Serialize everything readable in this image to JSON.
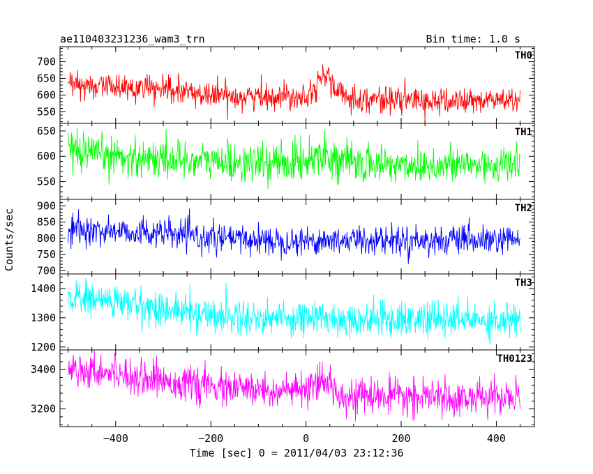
{
  "header": {
    "title": "ae110403231236_wam3_trn",
    "bin_time": "Bin time: 1.0 s"
  },
  "chart_data": {
    "type": "line",
    "title": "ae110403231236_wam3_trn",
    "subtitle": "Bin time: 1.0 s",
    "xlabel": "Time [sec] 0 = 2011/04/03 23:12:36",
    "ylabel": "Counts/sec",
    "xlim": [
      -517,
      480
    ],
    "x_ticks": [
      -400,
      -200,
      0,
      200,
      400
    ],
    "x_range_data": [
      -500,
      450
    ],
    "bin_time_s": 1.0,
    "panels": [
      {
        "name": "TH0",
        "color": "#ff0000",
        "ylim": [
          515,
          745
        ],
        "yticks": [
          550,
          600,
          650,
          700
        ],
        "profile": [
          [
            -500,
            630
          ],
          [
            -400,
            625
          ],
          [
            -300,
            615
          ],
          [
            -200,
            600
          ],
          [
            -100,
            595
          ],
          [
            0,
            600
          ],
          [
            30,
            640
          ],
          [
            45,
            670
          ],
          [
            60,
            610
          ],
          [
            100,
            590
          ],
          [
            200,
            585
          ],
          [
            300,
            580
          ],
          [
            400,
            585
          ],
          [
            450,
            585
          ]
        ],
        "noise": 20
      },
      {
        "name": "TH1",
        "color": "#00ff00",
        "ylim": [
          515,
          665
        ],
        "yticks": [
          550,
          600,
          650
        ],
        "profile": [
          [
            -500,
            605
          ],
          [
            -400,
            600
          ],
          [
            -300,
            595
          ],
          [
            -200,
            590
          ],
          [
            -100,
            585
          ],
          [
            0,
            590
          ],
          [
            30,
            610
          ],
          [
            60,
            595
          ],
          [
            100,
            585
          ],
          [
            200,
            583
          ],
          [
            300,
            582
          ],
          [
            400,
            583
          ],
          [
            450,
            583
          ]
        ],
        "noise": 19
      },
      {
        "name": "TH2",
        "color": "#0000ff",
        "ylim": [
          690,
          920
        ],
        "yticks": [
          700,
          750,
          800,
          850,
          900
        ],
        "profile": [
          [
            -500,
            825
          ],
          [
            -400,
            822
          ],
          [
            -300,
            815
          ],
          [
            -200,
            800
          ],
          [
            -100,
            795
          ],
          [
            0,
            792
          ],
          [
            100,
            795
          ],
          [
            200,
            795
          ],
          [
            300,
            792
          ],
          [
            400,
            792
          ],
          [
            450,
            792
          ]
        ],
        "noise": 22
      },
      {
        "name": "TH3",
        "color": "#00ffff",
        "ylim": [
          1190,
          1450
        ],
        "yticks": [
          1200,
          1300,
          1400
        ],
        "profile": [
          [
            -500,
            1370
          ],
          [
            -400,
            1355
          ],
          [
            -300,
            1330
          ],
          [
            -200,
            1310
          ],
          [
            -100,
            1300
          ],
          [
            0,
            1300
          ],
          [
            100,
            1295
          ],
          [
            200,
            1295
          ],
          [
            300,
            1293
          ],
          [
            400,
            1292
          ],
          [
            450,
            1292
          ]
        ],
        "noise": 30
      },
      {
        "name": "TH0123",
        "color": "#ff00ff",
        "ylim": [
          3110,
          3500
        ],
        "yticks": [
          3200,
          3400
        ],
        "profile": [
          [
            -500,
            3410
          ],
          [
            -400,
            3385
          ],
          [
            -300,
            3345
          ],
          [
            -200,
            3310
          ],
          [
            -100,
            3295
          ],
          [
            0,
            3290
          ],
          [
            30,
            3320
          ],
          [
            45,
            3345
          ],
          [
            60,
            3290
          ],
          [
            100,
            3265
          ],
          [
            200,
            3260
          ],
          [
            300,
            3255
          ],
          [
            400,
            3258
          ],
          [
            450,
            3258
          ]
        ],
        "noise": 44
      }
    ]
  }
}
